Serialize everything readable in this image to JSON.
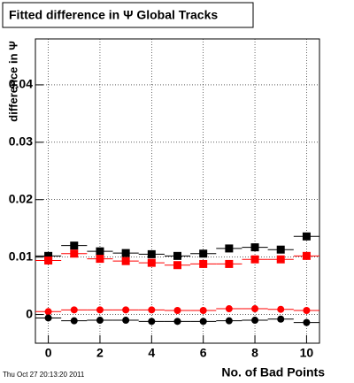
{
  "chart_data": {
    "type": "scatter",
    "title": "Fitted difference in Ψ   Global Tracks",
    "y_label": "difference in Ψ",
    "x_label": "No. of Bad Points",
    "timestamp": "Thu Oct 27 20:13:20 2011",
    "x": [
      0,
      1,
      2,
      3,
      4,
      5,
      6,
      7,
      8,
      9,
      10
    ],
    "series": [
      {
        "color": "#000000",
        "marker": "square",
        "values": [
          0.0102,
          0.012,
          0.011,
          0.0107,
          0.0105,
          0.0102,
          0.0106,
          0.0115,
          0.0117,
          0.0113,
          0.0136
        ]
      },
      {
        "color": "#ff0000",
        "marker": "square",
        "values": [
          0.0094,
          0.0106,
          0.0097,
          0.0093,
          0.009,
          0.0086,
          0.0088,
          0.0088,
          0.0096,
          0.0096,
          0.0102
        ]
      },
      {
        "color": "#ff0000",
        "marker": "circle",
        "values": [
          0.0005,
          0.0008,
          0.0008,
          0.0008,
          0.0008,
          0.0007,
          0.0007,
          0.001,
          0.001,
          0.0009,
          0.0007
        ]
      },
      {
        "color": "#000000",
        "marker": "circle",
        "values": [
          -0.0006,
          -0.0011,
          -0.001,
          -0.001,
          -0.0012,
          -0.0012,
          -0.0012,
          -0.0011,
          -0.001,
          -0.0008,
          -0.0014
        ]
      }
    ],
    "xlim": [
      -0.5,
      10.5
    ],
    "xticks": [
      0,
      2,
      4,
      6,
      8,
      10
    ],
    "ylim": [
      -0.005,
      0.048
    ],
    "yticks": [
      0,
      0.01,
      0.02,
      0.03,
      0.04
    ],
    "grid": true
  }
}
